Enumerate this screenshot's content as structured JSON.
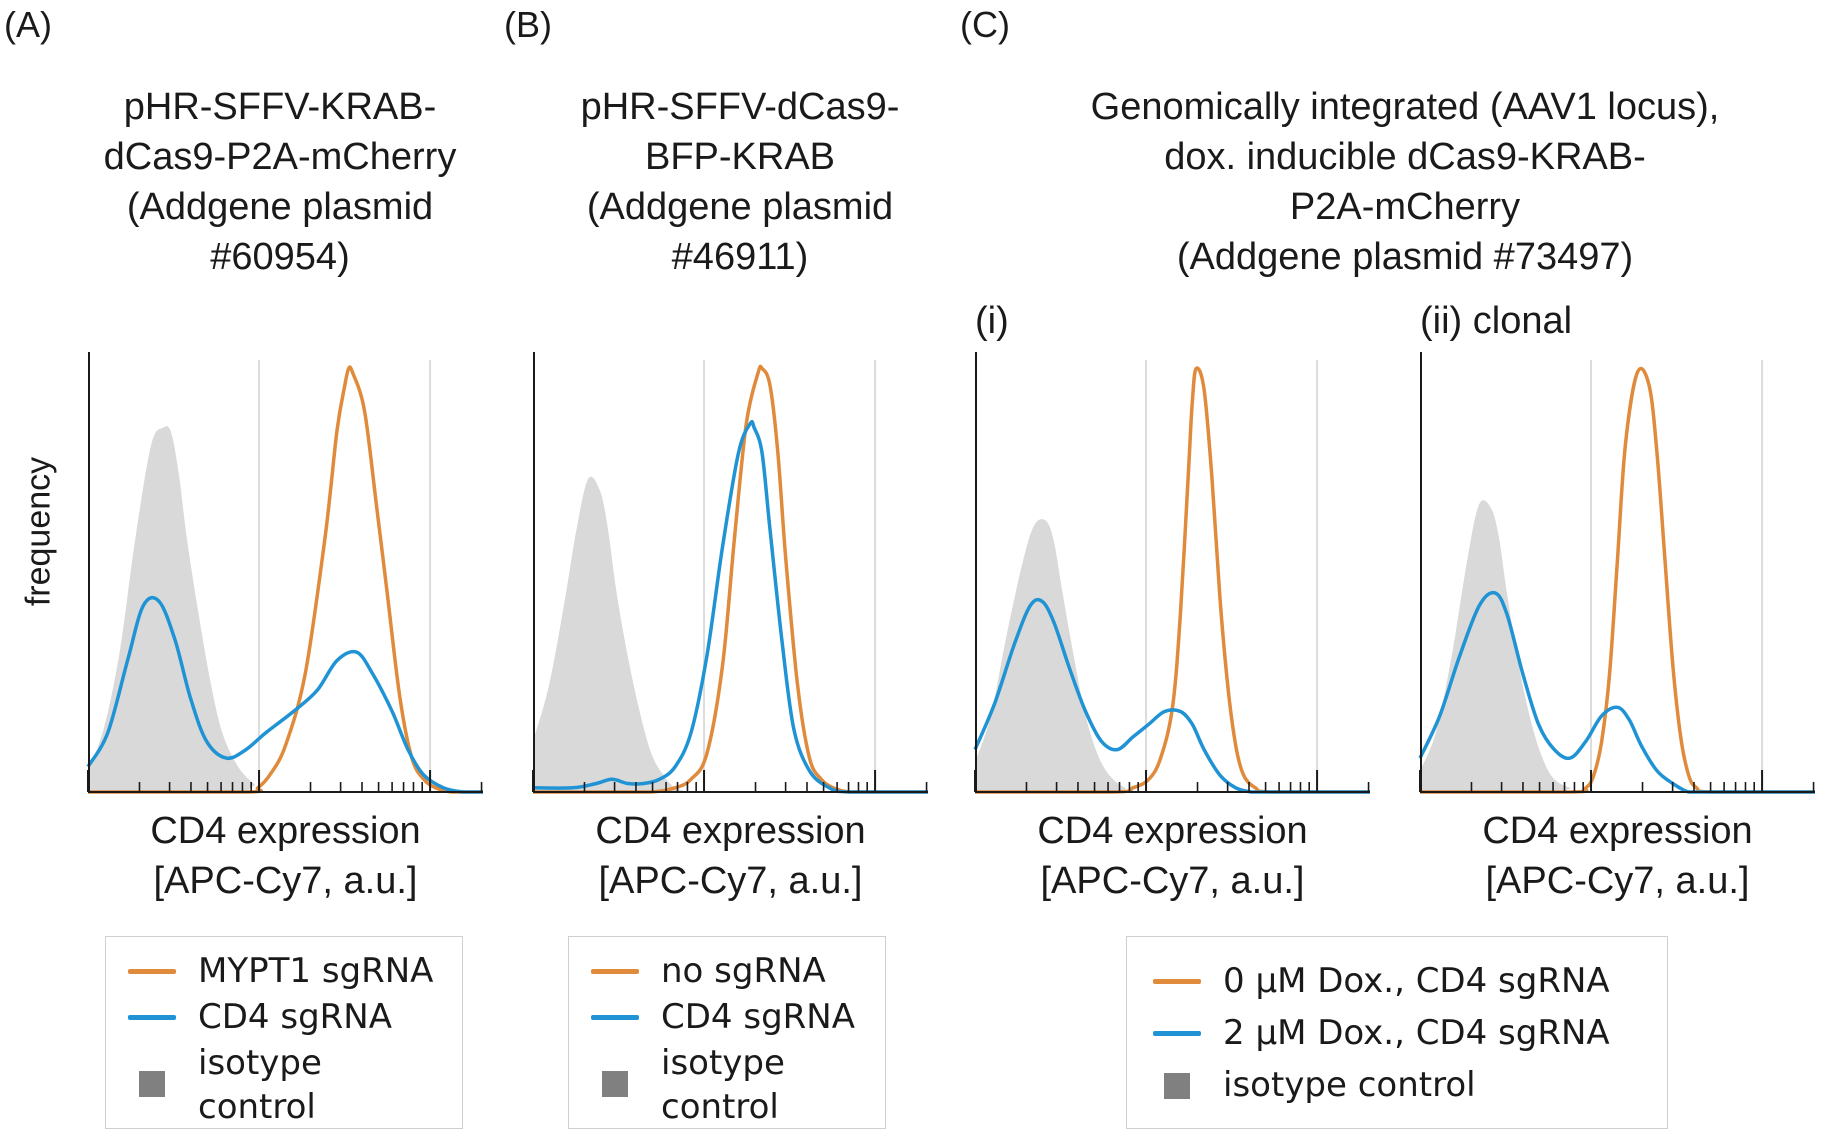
{
  "panel_labels": [
    "(A)",
    "(B)",
    "(C)"
  ],
  "sublabels": [
    "(i)",
    "(ii) clonal"
  ],
  "titles": {
    "A": [
      "pHR-SFFV-KRAB-",
      "dCas9-P2A-mCherry",
      "(Addgene plasmid",
      "#60954)"
    ],
    "B": [
      "pHR-SFFV-dCas9-",
      "BFP-KRAB",
      "(Addgene plasmid",
      "#46911)"
    ],
    "C": [
      "Genomically integrated (AAV1 locus),",
      "dox. inducible dCas9-KRAB-",
      "P2A-mCherry",
      "(Addgene plasmid #73497)"
    ]
  },
  "ylabel": "frequency",
  "xlabel": [
    "CD4 expression",
    "[APC-Cy7, a.u.]"
  ],
  "legends": {
    "A": {
      "orange": "MYPT1 sgRNA",
      "blue": "CD4 sgRNA",
      "gray": [
        "isotype",
        "control"
      ]
    },
    "B": {
      "orange": "no sgRNA",
      "blue": "CD4 sgRNA",
      "gray": [
        "isotype",
        "control"
      ]
    },
    "C": {
      "orange": "0 µM Dox., CD4 sgRNA",
      "blue": "2 µM Dox., CD4 sgRNA",
      "gray": [
        "isotype control"
      ]
    }
  },
  "colors": {
    "orange": "#e08a3c",
    "blue": "#1f93d4",
    "gray": "#d9d9d9",
    "legend_gray": "#808080",
    "axis": "#1a1a1a",
    "grid": "#dcdcdc"
  },
  "chart_data": [
    {
      "type": "area",
      "panel": "A",
      "x_scale": "log",
      "grid": "vertical at decades",
      "series": [
        {
          "name": "MYPT1 sgRNA",
          "color": "orange",
          "x": [
            0.0,
            0.4,
            0.43,
            0.46,
            0.5,
            0.55,
            0.6,
            0.63,
            0.65,
            0.66,
            0.67,
            0.7,
            0.73,
            0.76,
            0.79,
            0.82,
            0.85,
            0.88,
            0.92,
            0.96,
            1.0
          ],
          "y": [
            0.0,
            0.0,
            0.01,
            0.04,
            0.11,
            0.28,
            0.6,
            0.85,
            0.96,
            1.0,
            0.99,
            0.9,
            0.68,
            0.45,
            0.22,
            0.08,
            0.03,
            0.01,
            0.0,
            0.0,
            0.0
          ]
        },
        {
          "name": "CD4 sgRNA",
          "color": "blue",
          "x": [
            0.0,
            0.05,
            0.1,
            0.14,
            0.18,
            0.22,
            0.26,
            0.3,
            0.35,
            0.4,
            0.45,
            0.52,
            0.58,
            0.63,
            0.68,
            0.72,
            0.77,
            0.81,
            0.85,
            0.9,
            0.95,
            1.0
          ],
          "y": [
            0.06,
            0.14,
            0.31,
            0.44,
            0.45,
            0.36,
            0.22,
            0.12,
            0.08,
            0.1,
            0.14,
            0.19,
            0.24,
            0.31,
            0.33,
            0.28,
            0.19,
            0.1,
            0.04,
            0.01,
            0.0,
            0.0
          ]
        },
        {
          "name": "isotype control",
          "color": "gray",
          "x": [
            0.0,
            0.04,
            0.08,
            0.12,
            0.16,
            0.19,
            0.21,
            0.23,
            0.25,
            0.28,
            0.31,
            0.34,
            0.38,
            0.42,
            0.46,
            1.0
          ],
          "y": [
            0.05,
            0.15,
            0.33,
            0.6,
            0.82,
            0.86,
            0.85,
            0.75,
            0.6,
            0.42,
            0.26,
            0.14,
            0.06,
            0.02,
            0.0,
            0.0
          ]
        }
      ]
    },
    {
      "type": "area",
      "panel": "B",
      "x_scale": "log",
      "grid": "vertical at decades",
      "series": [
        {
          "name": "no sgRNA",
          "color": "orange",
          "x": [
            0.0,
            0.2,
            0.3,
            0.36,
            0.4,
            0.44,
            0.48,
            0.51,
            0.54,
            0.57,
            0.58,
            0.6,
            0.62,
            0.64,
            0.67,
            0.7,
            0.73,
            0.76,
            0.8,
            0.85,
            1.0
          ],
          "y": [
            0.0,
            0.0,
            0.0,
            0.01,
            0.03,
            0.09,
            0.3,
            0.6,
            0.87,
            0.99,
            1.0,
            0.96,
            0.8,
            0.55,
            0.25,
            0.08,
            0.03,
            0.01,
            0.0,
            0.0,
            0.0
          ]
        },
        {
          "name": "CD4 sgRNA",
          "color": "blue",
          "x": [
            0.0,
            0.1,
            0.16,
            0.2,
            0.24,
            0.28,
            0.32,
            0.36,
            0.4,
            0.44,
            0.48,
            0.52,
            0.55,
            0.56,
            0.58,
            0.6,
            0.63,
            0.66,
            0.7,
            0.75,
            0.8,
            1.0
          ],
          "y": [
            0.01,
            0.01,
            0.02,
            0.03,
            0.02,
            0.02,
            0.03,
            0.06,
            0.14,
            0.32,
            0.58,
            0.8,
            0.87,
            0.86,
            0.8,
            0.62,
            0.36,
            0.15,
            0.05,
            0.01,
            0.0,
            0.0
          ]
        },
        {
          "name": "isotype control",
          "color": "gray",
          "x": [
            0.0,
            0.04,
            0.08,
            0.11,
            0.14,
            0.17,
            0.19,
            0.21,
            0.24,
            0.27,
            0.3,
            0.33,
            0.36,
            0.4,
            0.44,
            1.0
          ],
          "y": [
            0.12,
            0.25,
            0.45,
            0.62,
            0.74,
            0.71,
            0.62,
            0.48,
            0.32,
            0.19,
            0.09,
            0.04,
            0.01,
            0.0,
            0.0,
            0.0
          ]
        }
      ]
    },
    {
      "type": "area",
      "panel": "C (i)",
      "x_scale": "log",
      "grid": "vertical at decades",
      "series": [
        {
          "name": "0 µM Dox., CD4 sgRNA",
          "color": "orange",
          "x": [
            0.0,
            0.35,
            0.4,
            0.44,
            0.47,
            0.5,
            0.52,
            0.54,
            0.55,
            0.56,
            0.58,
            0.6,
            0.62,
            0.64,
            0.66,
            0.68,
            0.71,
            0.75,
            1.0
          ],
          "y": [
            0.0,
            0.0,
            0.01,
            0.03,
            0.08,
            0.2,
            0.42,
            0.75,
            0.92,
            1.0,
            0.95,
            0.74,
            0.46,
            0.25,
            0.11,
            0.04,
            0.01,
            0.0,
            0.0
          ]
        },
        {
          "name": "2 µM Dox., CD4 sgRNA",
          "color": "blue",
          "x": [
            0.0,
            0.05,
            0.1,
            0.14,
            0.17,
            0.2,
            0.24,
            0.28,
            0.32,
            0.36,
            0.4,
            0.44,
            0.48,
            0.52,
            0.55,
            0.58,
            0.62,
            0.66,
            0.7,
            0.75,
            0.8,
            1.0
          ],
          "y": [
            0.1,
            0.21,
            0.35,
            0.44,
            0.45,
            0.4,
            0.29,
            0.19,
            0.12,
            0.1,
            0.13,
            0.16,
            0.19,
            0.19,
            0.16,
            0.1,
            0.04,
            0.01,
            0.0,
            0.0,
            0.0,
            0.0
          ]
        },
        {
          "name": "isotype control",
          "color": "gray",
          "x": [
            0.0,
            0.04,
            0.08,
            0.12,
            0.15,
            0.18,
            0.2,
            0.22,
            0.25,
            0.28,
            0.31,
            0.34,
            0.38,
            0.42,
            1.0
          ],
          "y": [
            0.07,
            0.18,
            0.37,
            0.54,
            0.63,
            0.64,
            0.59,
            0.48,
            0.32,
            0.18,
            0.09,
            0.04,
            0.01,
            0.0,
            0.0
          ]
        }
      ]
    },
    {
      "type": "area",
      "panel": "C (ii) clonal",
      "x_scale": "log",
      "grid": "vertical at decades",
      "series": [
        {
          "name": "0 µM Dox., CD4 sgRNA",
          "color": "orange",
          "x": [
            0.0,
            0.38,
            0.42,
            0.44,
            0.46,
            0.48,
            0.5,
            0.52,
            0.55,
            0.58,
            0.6,
            0.62,
            0.64,
            0.66,
            0.68,
            0.7,
            0.74,
            1.0
          ],
          "y": [
            0.0,
            0.0,
            0.01,
            0.04,
            0.12,
            0.28,
            0.55,
            0.82,
            0.99,
            0.96,
            0.8,
            0.55,
            0.3,
            0.13,
            0.04,
            0.01,
            0.0,
            0.0
          ]
        },
        {
          "name": "2 µM Dox., CD4 sgRNA",
          "color": "blue",
          "x": [
            0.0,
            0.05,
            0.1,
            0.15,
            0.19,
            0.22,
            0.26,
            0.3,
            0.34,
            0.38,
            0.42,
            0.46,
            0.5,
            0.53,
            0.56,
            0.6,
            0.64,
            0.68,
            0.72,
            0.78,
            1.0
          ],
          "y": [
            0.08,
            0.18,
            0.32,
            0.44,
            0.47,
            0.42,
            0.28,
            0.16,
            0.1,
            0.08,
            0.12,
            0.18,
            0.2,
            0.17,
            0.11,
            0.05,
            0.02,
            0.0,
            0.0,
            0.0,
            0.0
          ]
        },
        {
          "name": "isotype control",
          "color": "gray",
          "x": [
            0.0,
            0.04,
            0.08,
            0.12,
            0.15,
            0.18,
            0.2,
            0.22,
            0.25,
            0.28,
            0.31,
            0.34,
            0.38,
            0.42,
            1.0
          ],
          "y": [
            0.05,
            0.14,
            0.32,
            0.55,
            0.68,
            0.67,
            0.6,
            0.47,
            0.3,
            0.17,
            0.08,
            0.03,
            0.01,
            0.0,
            0.0
          ]
        }
      ]
    }
  ]
}
